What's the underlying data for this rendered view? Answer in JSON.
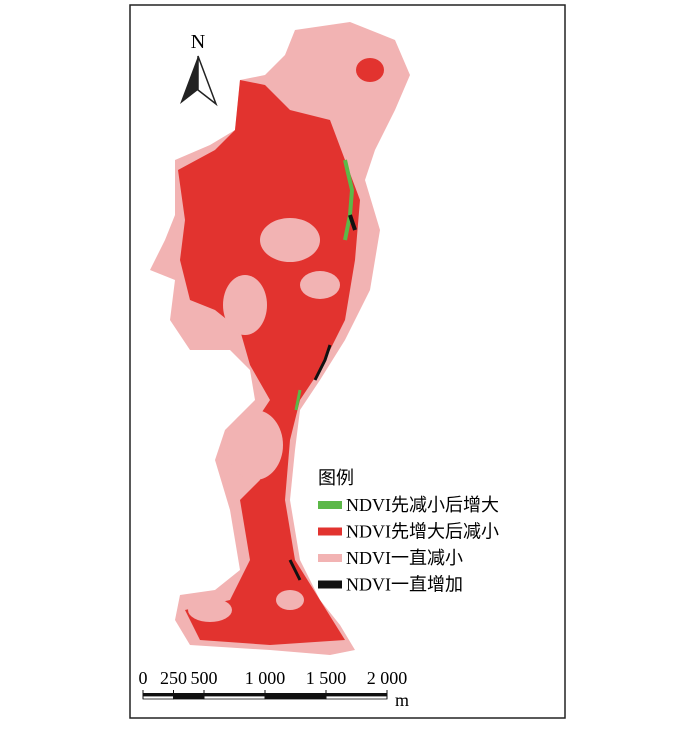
{
  "map": {
    "north": "N",
    "legend": {
      "title": "图例",
      "items": [
        {
          "label": "NDVI先减小后增大",
          "color": "#5cb848"
        },
        {
          "label": "NDVI先增大后减小",
          "color": "#e2332f"
        },
        {
          "label": "NDVI一直减小",
          "color": "#f2b3b3"
        },
        {
          "label": "NDVI一直增加",
          "color": "#111111"
        }
      ]
    },
    "scale_bar": {
      "unit": "m",
      "ticks": [
        0,
        250,
        500,
        {
          "value": 1000,
          "label": "1 000"
        },
        {
          "value": 1500,
          "label": "1 500"
        },
        {
          "value": 2000,
          "label": "2 000"
        }
      ]
    }
  }
}
